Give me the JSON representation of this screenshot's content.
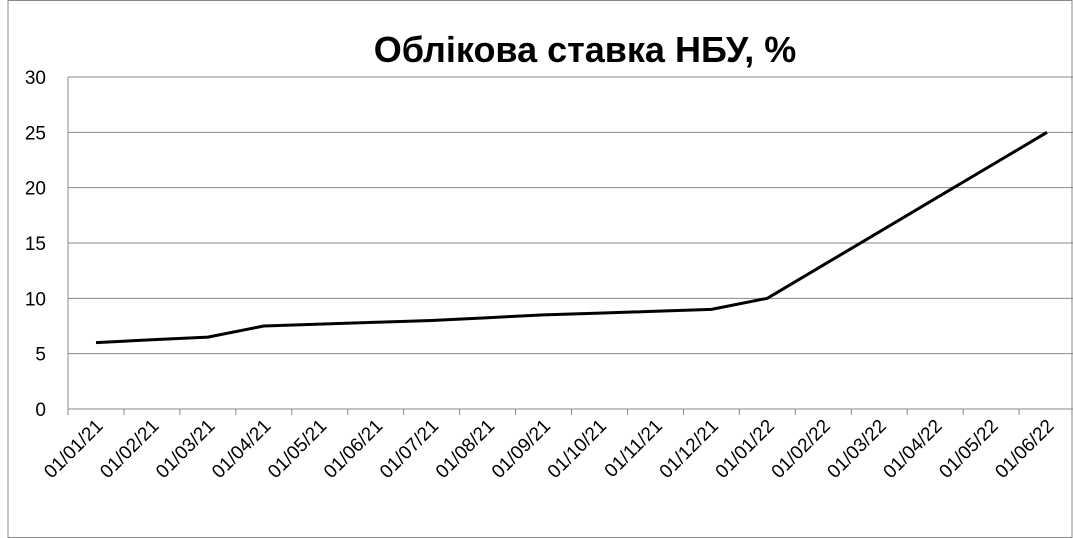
{
  "chart_data": {
    "type": "line",
    "title": "Облікова ставка НБУ, %",
    "categories": [
      "01/01/21",
      "01/02/21",
      "01/03/21",
      "01/04/21",
      "01/05/21",
      "01/06/21",
      "01/07/21",
      "01/08/21",
      "01/09/21",
      "01/10/21",
      "01/11/21",
      "01/12/21",
      "01/01/22",
      "01/02/22",
      "01/03/22",
      "01/04/22",
      "01/05/22",
      "01/06/22"
    ],
    "values": [
      6,
      6.25,
      6.5,
      7.5,
      7.67,
      7.83,
      8,
      8.25,
      8.5,
      8.67,
      8.83,
      9,
      10,
      13,
      16,
      19,
      22,
      25
    ],
    "color": "#000000",
    "ylim": [
      0,
      30
    ],
    "yticks": [
      0,
      5,
      10,
      15,
      20,
      25,
      30
    ],
    "grid": true
  }
}
